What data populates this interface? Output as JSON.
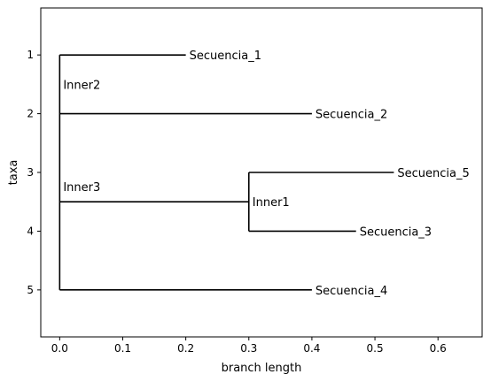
{
  "chart_data": {
    "type": "tree",
    "xlabel": "branch length",
    "ylabel": "taxa",
    "xlim": [
      -0.03,
      0.67
    ],
    "ylim": [
      5.8,
      0.2
    ],
    "x_ticks": [
      0.0,
      0.1,
      0.2,
      0.3,
      0.4,
      0.5,
      0.6
    ],
    "x_tick_labels": [
      "0.0",
      "0.1",
      "0.2",
      "0.3",
      "0.4",
      "0.5",
      "0.6"
    ],
    "y_ticks": [
      1,
      2,
      3,
      4,
      5
    ],
    "y_tick_labels": [
      "1",
      "2",
      "3",
      "4",
      "5"
    ],
    "line_color": "#000000",
    "nodes": [
      {
        "id": "root",
        "x": 0.0,
        "y": 3.5,
        "label": ""
      },
      {
        "id": "inner2",
        "x": 0.0,
        "y": 1.5,
        "label": "Inner2"
      },
      {
        "id": "inner3",
        "x": 0.0,
        "y": 3.5,
        "label": "Inner3"
      },
      {
        "id": "inner1",
        "x": 0.3,
        "y": 3.5,
        "label": "Inner1"
      },
      {
        "id": "s1",
        "x": 0.2,
        "y": 1,
        "label": "Secuencia_1"
      },
      {
        "id": "s2",
        "x": 0.4,
        "y": 2,
        "label": "Secuencia_2"
      },
      {
        "id": "s5",
        "x": 0.53,
        "y": 3,
        "label": "Secuencia_5"
      },
      {
        "id": "s3",
        "x": 0.47,
        "y": 4,
        "label": "Secuencia_3"
      },
      {
        "id": "s4",
        "x": 0.4,
        "y": 5,
        "label": "Secuencia_4"
      }
    ],
    "horizontal_branches": [
      {
        "x0": 0.0,
        "x1": 0.2,
        "y": 1
      },
      {
        "x0": 0.0,
        "x1": 0.4,
        "y": 2
      },
      {
        "x0": 0.0,
        "x1": 0.3,
        "y": 3.5
      },
      {
        "x0": 0.3,
        "x1": 0.53,
        "y": 3
      },
      {
        "x0": 0.3,
        "x1": 0.47,
        "y": 4
      },
      {
        "x0": 0.0,
        "x1": 0.4,
        "y": 5
      }
    ],
    "vertical_branches": [
      {
        "x": 0.0,
        "y0": 1,
        "y1": 5
      },
      {
        "x": 0.3,
        "y0": 3,
        "y1": 4
      }
    ]
  }
}
